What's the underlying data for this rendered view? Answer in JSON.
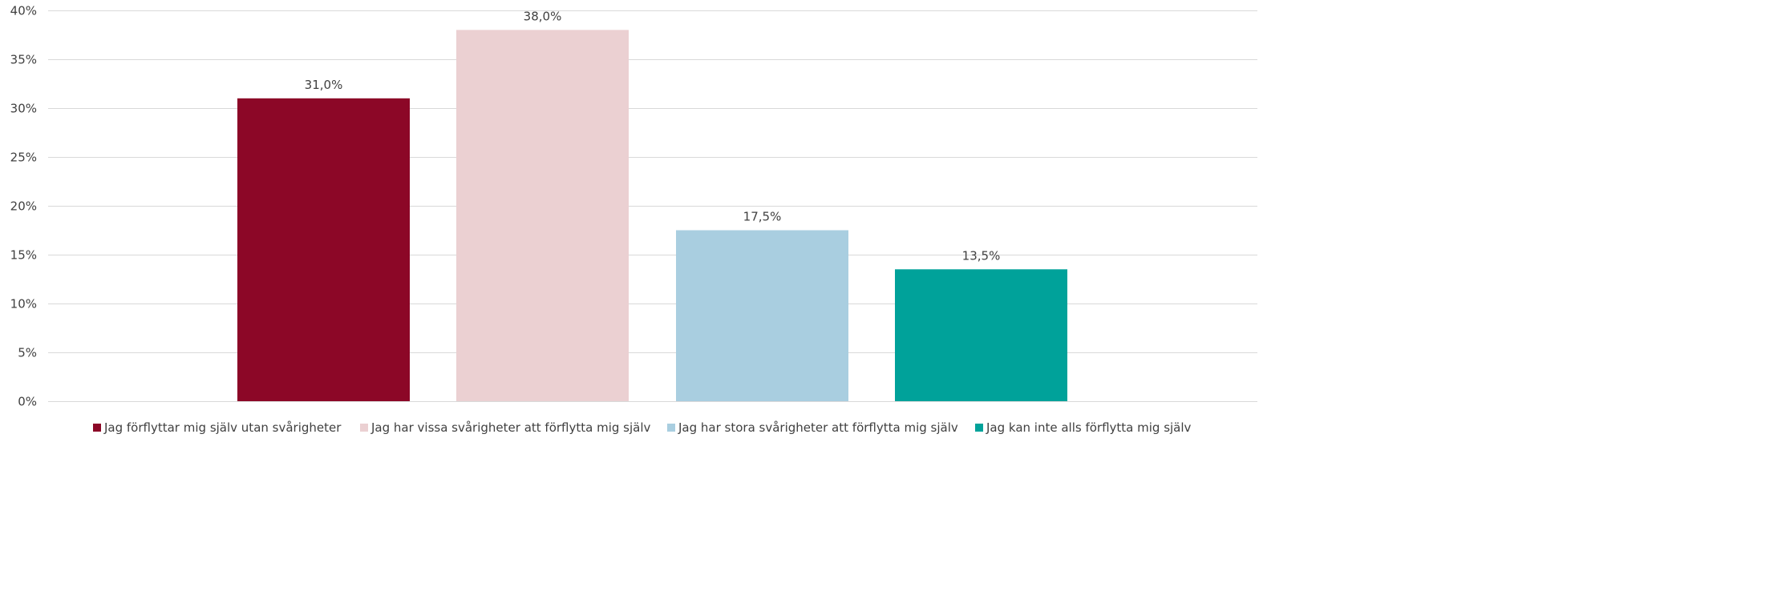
{
  "chart_data": {
    "type": "bar",
    "title": "",
    "xlabel": "",
    "ylabel": "",
    "ylim": [
      0,
      0.4
    ],
    "yticks": [
      0,
      0.05,
      0.1,
      0.15,
      0.2,
      0.25,
      0.3,
      0.35,
      0.4
    ],
    "ytick_labels": [
      "0%",
      "5%",
      "10%",
      "15%",
      "20%",
      "25%",
      "30%",
      "35%",
      "40%"
    ],
    "grid": true,
    "legend_position": "bottom",
    "series": [
      {
        "name": "Jag förflyttar mig själv utan svårigheter",
        "value": 0.31,
        "label": "31,0%",
        "color": "#8C0727"
      },
      {
        "name": "Jag har vissa svårigheter att förflytta mig själv",
        "value": 0.38,
        "label": "38,0%",
        "color": "#EBD0D2"
      },
      {
        "name": "Jag har stora svårigheter att förflytta mig själv",
        "value": 0.175,
        "label": "17,5%",
        "color": "#A9CEE0"
      },
      {
        "name": "Jag kan inte alls förflytta mig själv",
        "value": 0.135,
        "label": "13,5%",
        "color": "#00A29A"
      }
    ]
  }
}
